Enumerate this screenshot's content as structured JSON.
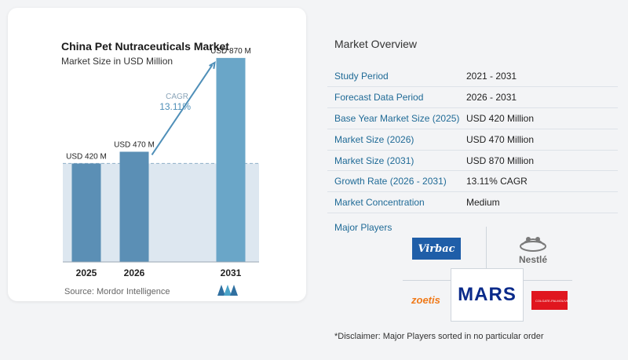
{
  "chart_data": {
    "type": "bar",
    "title": "China Pet Nutraceuticals Market",
    "subtitle": "Market Size in USD Million",
    "categories": [
      "2025",
      "2026",
      "2031"
    ],
    "values": [
      420,
      470,
      870
    ],
    "data_labels": [
      "USD 420 M",
      "USD 470 M",
      "USD 870 M"
    ],
    "ylim": [
      0,
      1000
    ],
    "cagr_label": "CAGR",
    "cagr_value": "13.11%",
    "colors": {
      "bar": "#5b8fb5",
      "bar_light": "#6aa6c8",
      "band": "#dde7f0",
      "accent": "#4f8fb8"
    }
  },
  "source": "Source:  Mordor Intelligence",
  "overview": {
    "title": "Market Overview",
    "rows": [
      {
        "label": "Study Period",
        "value": "2021 - 2031"
      },
      {
        "label": "Forecast Data Period",
        "value": "2026 - 2031"
      },
      {
        "label": "Base Year Market Size (2025)",
        "value": "USD 420 Million"
      },
      {
        "label": "Market Size (2026)",
        "value": "USD 470 Million"
      },
      {
        "label": "Market Size (2031)",
        "value": "USD 870 Million"
      },
      {
        "label": "Growth Rate (2026 - 2031)",
        "value": "13.11% CAGR"
      },
      {
        "label": "Market Concentration",
        "value": "Medium"
      }
    ]
  },
  "players": {
    "title": "Major Players",
    "logos": [
      "Virbac",
      "Nestlé",
      "zoetis",
      "MARS",
      "COLGATE-PALMOLIVE"
    ]
  },
  "disclaimer": "*Disclaimer: Major Players sorted in no particular order"
}
